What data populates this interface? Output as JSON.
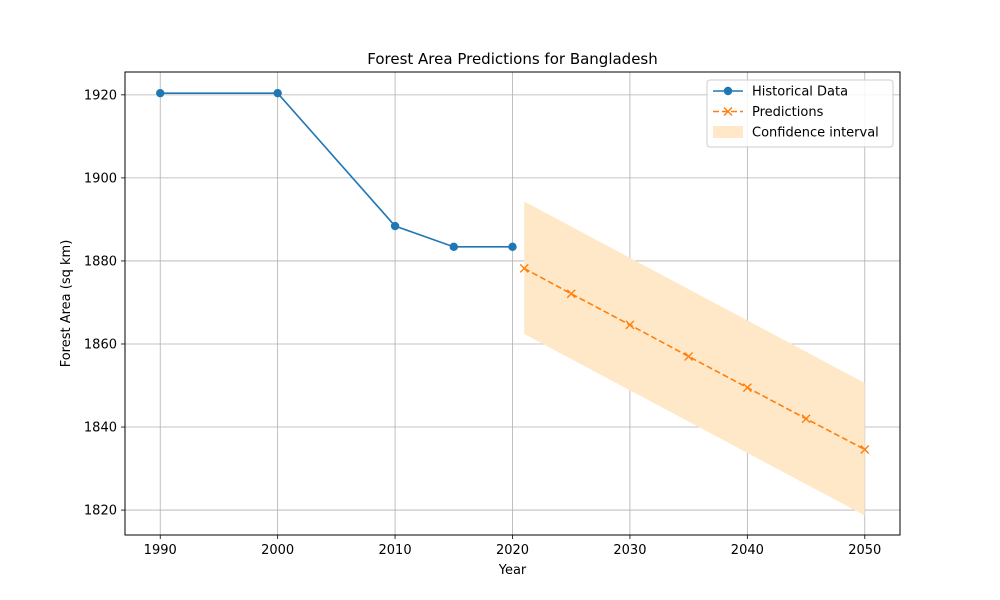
{
  "chart_data": {
    "type": "line",
    "title": "Forest Area Predictions for Bangladesh",
    "xlabel": "Year",
    "ylabel": "Forest Area (sq km)",
    "xlim": [
      1987,
      2053
    ],
    "ylim": [
      1814,
      1925.5
    ],
    "xticks": [
      1990,
      2000,
      2010,
      2020,
      2030,
      2040,
      2050
    ],
    "yticks": [
      1820,
      1840,
      1860,
      1880,
      1900,
      1920
    ],
    "grid": true,
    "legend_position": "top-right",
    "series": [
      {
        "name": "Historical Data",
        "style": "solid",
        "marker": "circle",
        "color": "#1f77b4",
        "x": [
          1990,
          2000,
          2010,
          2015,
          2020
        ],
        "y": [
          1920.4,
          1920.4,
          1888.4,
          1883.4,
          1883.4
        ]
      },
      {
        "name": "Predictions",
        "style": "dashed",
        "marker": "x",
        "color": "#ff7f0e",
        "x": [
          2021,
          2025,
          2030,
          2035,
          2040,
          2045,
          2050
        ],
        "y": [
          1878.2,
          1872.1,
          1864.6,
          1857.0,
          1849.5,
          1842.0,
          1834.6
        ]
      }
    ],
    "confidence_interval": {
      "name": "Confidence interval",
      "color": "#ffe8c7",
      "x": [
        2021,
        2050
      ],
      "lower": [
        1862.4,
        1818.7
      ],
      "upper": [
        1894.3,
        1850.6
      ]
    }
  }
}
